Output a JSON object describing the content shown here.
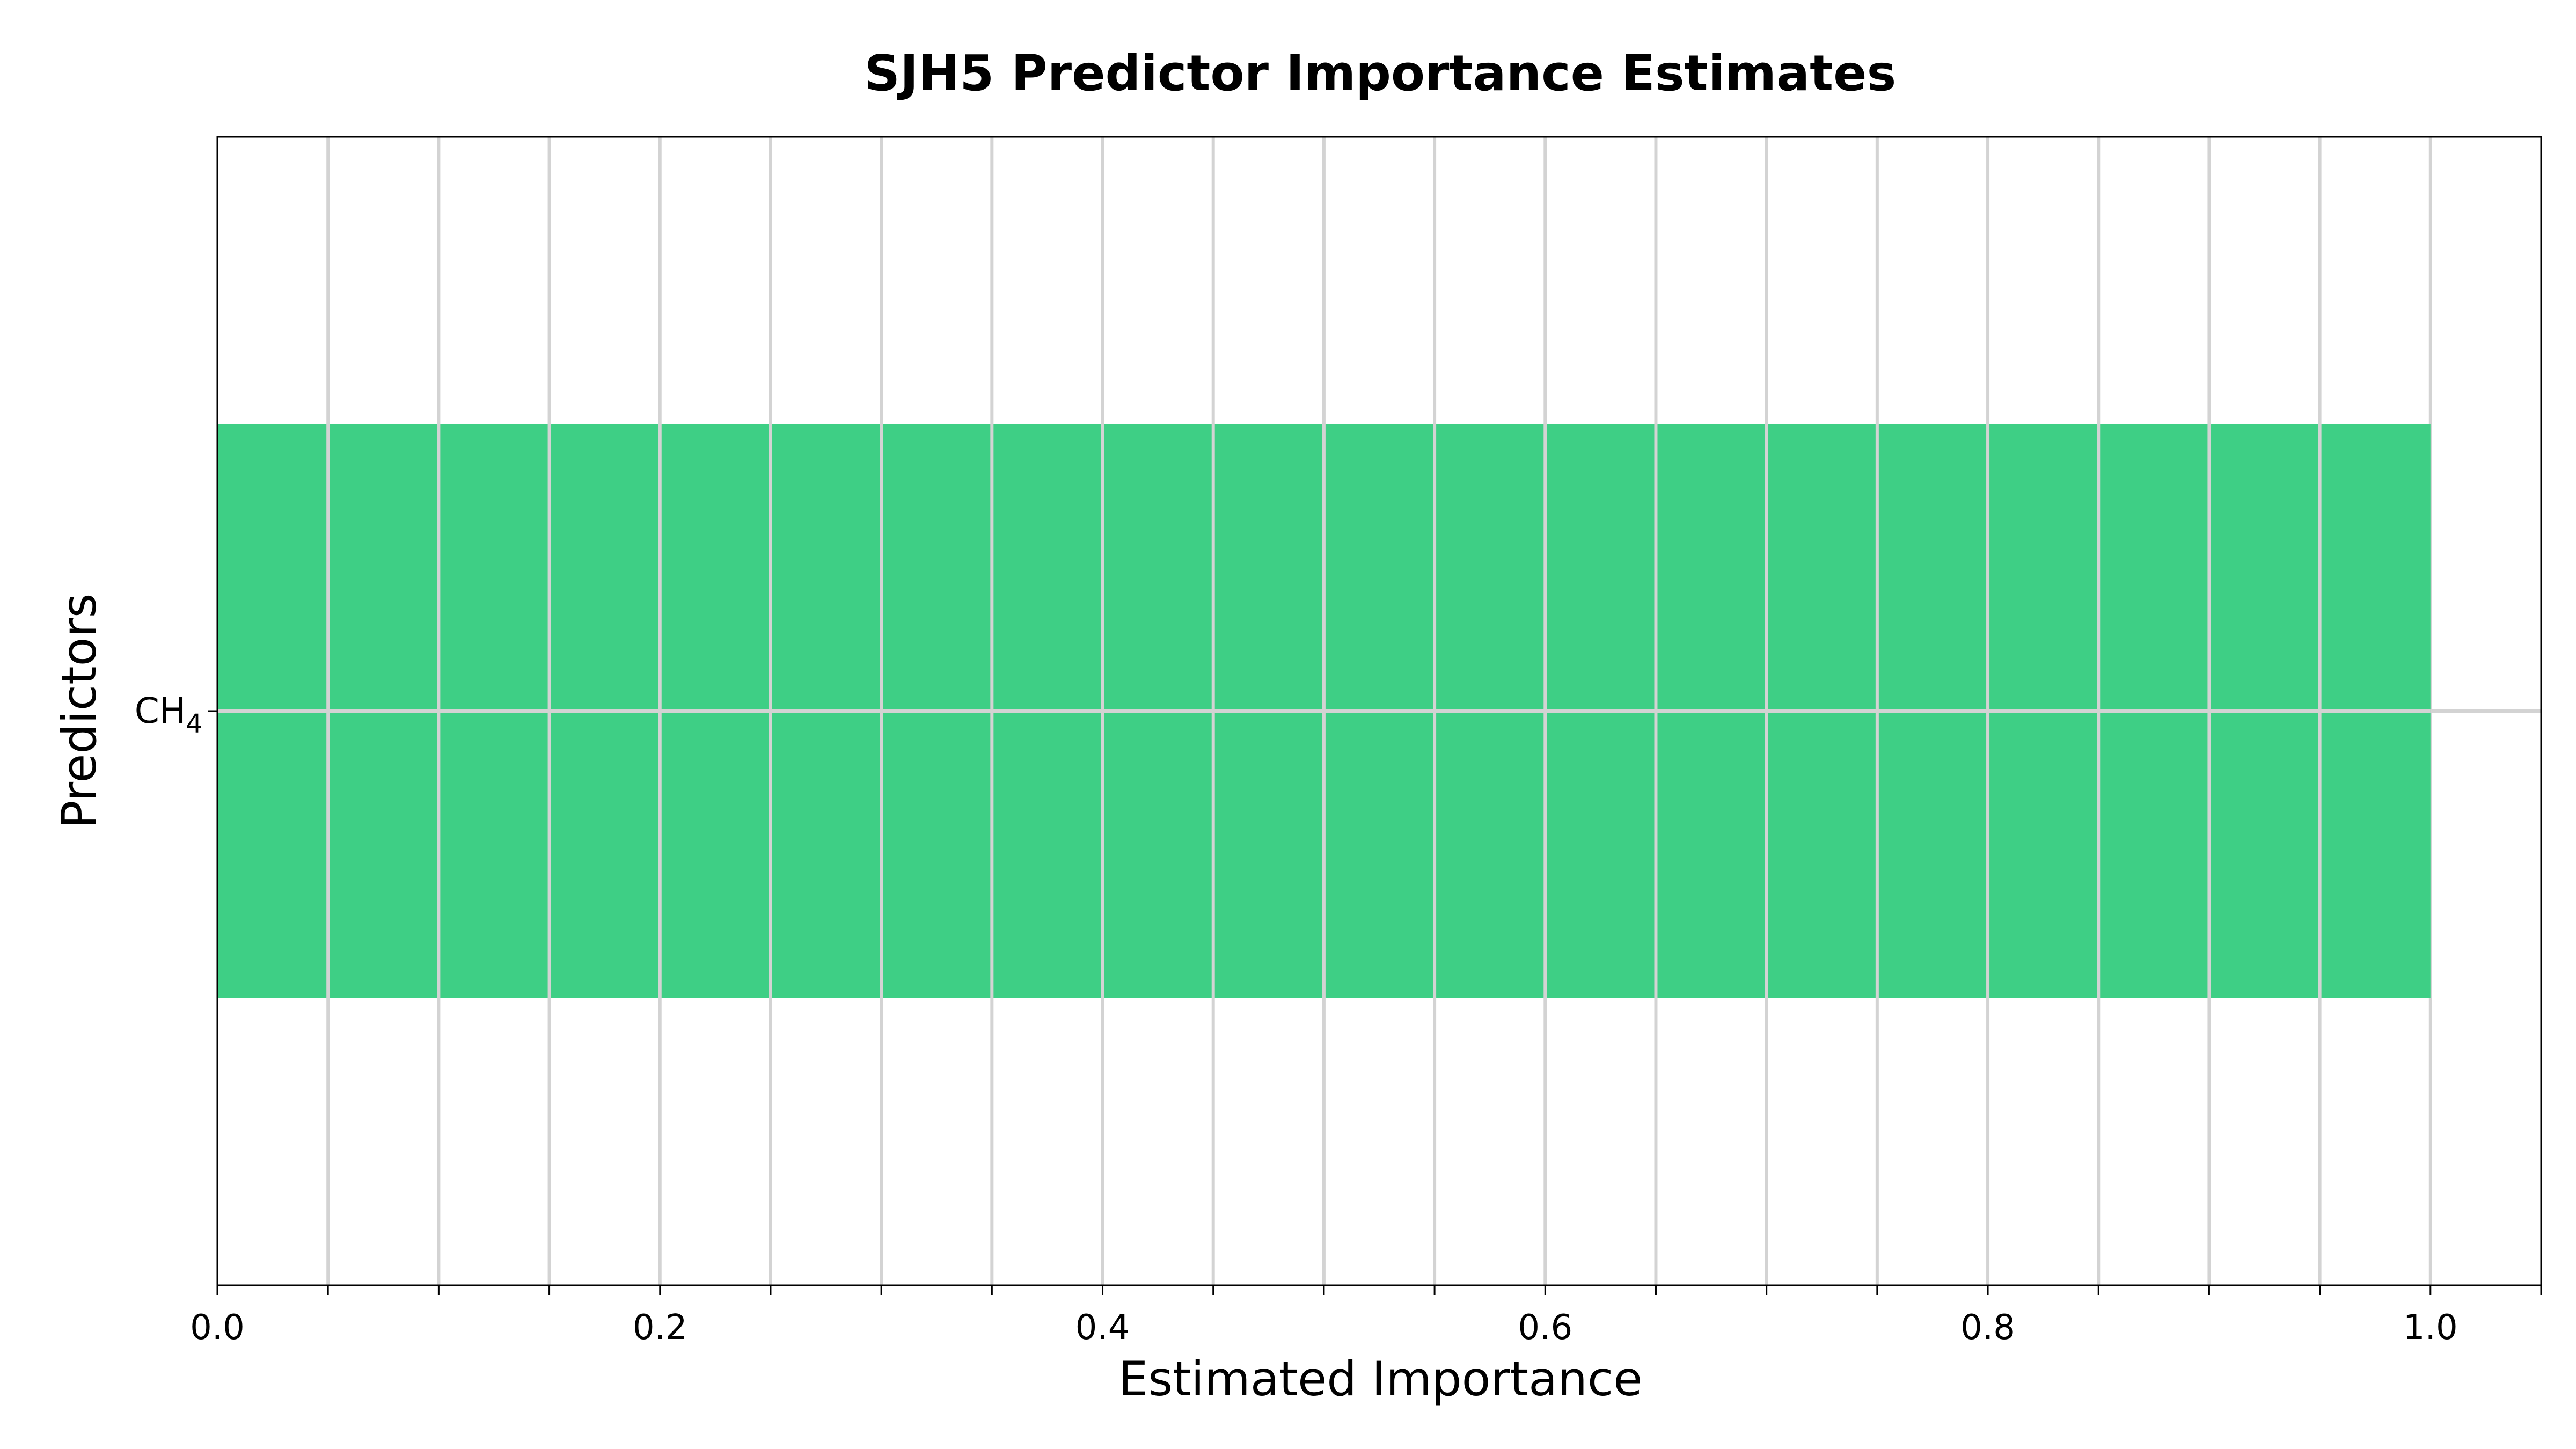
{
  "chart_data": {
    "type": "bar",
    "orientation": "horizontal",
    "title": "SJH5 Predictor Importance Estimates",
    "xlabel": "Estimated Importance",
    "ylabel": "Predictors",
    "categories": [
      {
        "base": "CH",
        "sub": "4"
      }
    ],
    "values": [
      1.0
    ],
    "xlim": [
      0.0,
      1.05
    ],
    "xticks": [
      "0.0",
      "0.2",
      "0.4",
      "0.6",
      "0.8",
      "1.0"
    ],
    "minor_grid_step": 0.05,
    "grid": true,
    "bar_color": "#3ecf85",
    "grid_color": "#d3d3d3"
  }
}
